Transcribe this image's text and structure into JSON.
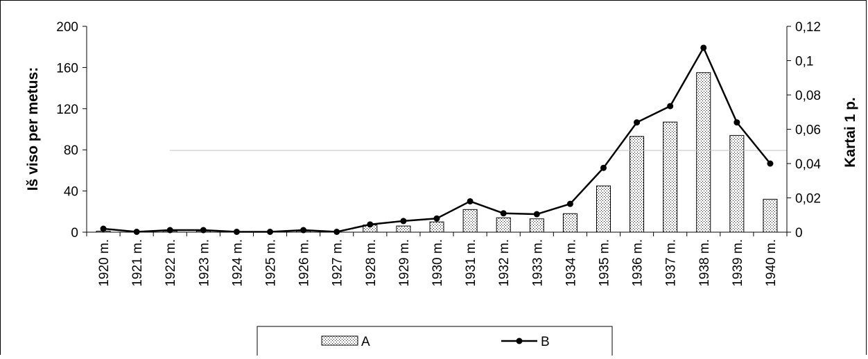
{
  "chart_data": {
    "type": "bar",
    "title": "",
    "categories": [
      "1920 m.",
      "1921 m.",
      "1922 m.",
      "1923 m.",
      "1924 m.",
      "1925 m.",
      "1926 m.",
      "1927 m.",
      "1928 m.",
      "1929 m.",
      "1930 m.",
      "1931 m.",
      "1932 m.",
      "1933 m.",
      "1934 m.",
      "1935 m.",
      "1936 m.",
      "1937 m.",
      "1938 m.",
      "1939 m.",
      "1940 m."
    ],
    "series": [
      {
        "name": "A",
        "kind": "bar",
        "axis": "left",
        "values": [
          1,
          0,
          1,
          1,
          0,
          0,
          1,
          0,
          7,
          6,
          10,
          22,
          14,
          13,
          18,
          45,
          93,
          107,
          155,
          94,
          32
        ]
      },
      {
        "name": "B",
        "kind": "line",
        "axis": "right",
        "values": [
          0.002,
          0.0002,
          0.0012,
          0.0012,
          0.0002,
          0.0002,
          0.0012,
          0.0002,
          0.0045,
          0.0065,
          0.008,
          0.018,
          0.011,
          0.0105,
          0.0165,
          0.0375,
          0.064,
          0.0735,
          0.1075,
          0.064,
          0.04
        ]
      }
    ],
    "y_left": {
      "label": "Iš viso per metus:",
      "ticks": [
        "0",
        "40",
        "80",
        "120",
        "160",
        "200"
      ],
      "ylim": [
        0,
        200
      ]
    },
    "y_right": {
      "label": "Kartai 1 p.",
      "ticks": [
        "0",
        "0,02",
        "0,04",
        "0,06",
        "0,08",
        "0,1",
        "0,12"
      ],
      "ylim": [
        0,
        0.12
      ]
    },
    "grid": false,
    "legend": {
      "placement": "bottom",
      "items": [
        {
          "label": "A",
          "symbol": "dotted-bar"
        },
        {
          "label": "B",
          "symbol": "line-dot"
        }
      ]
    }
  },
  "colors": {
    "bar_fill": "#ffffff",
    "bar_dots": "#000000",
    "line": "#000000",
    "axis": "#000000"
  }
}
